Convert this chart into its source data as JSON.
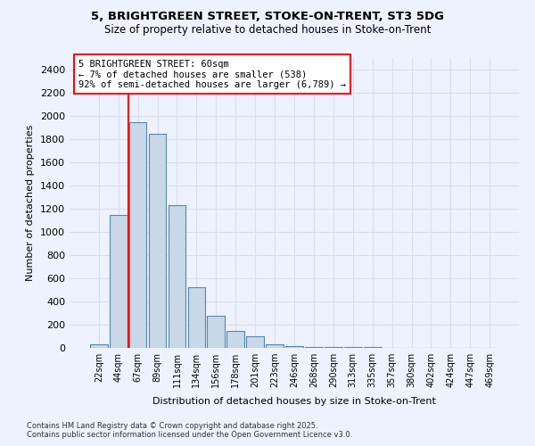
{
  "title_line1": "5, BRIGHTGREEN STREET, STOKE-ON-TRENT, ST3 5DG",
  "title_line2": "Size of property relative to detached houses in Stoke-on-Trent",
  "xlabel": "Distribution of detached houses by size in Stoke-on-Trent",
  "ylabel": "Number of detached properties",
  "categories": [
    "22sqm",
    "44sqm",
    "67sqm",
    "89sqm",
    "111sqm",
    "134sqm",
    "156sqm",
    "178sqm",
    "201sqm",
    "223sqm",
    "246sqm",
    "268sqm",
    "290sqm",
    "313sqm",
    "335sqm",
    "357sqm",
    "380sqm",
    "402sqm",
    "424sqm",
    "447sqm",
    "469sqm"
  ],
  "values": [
    30,
    1150,
    1950,
    1850,
    1230,
    520,
    280,
    150,
    100,
    30,
    15,
    8,
    5,
    5,
    5,
    3,
    3,
    3,
    3,
    3,
    3
  ],
  "bar_color": "#c8d8e8",
  "bar_edge_color": "#5588aa",
  "red_line_x": 1.5,
  "annotation_text": "5 BRIGHTGREEN STREET: 60sqm\n← 7% of detached houses are smaller (538)\n92% of semi-detached houses are larger (6,789) →",
  "annotation_box_color": "white",
  "annotation_box_edge_color": "red",
  "ylim": [
    0,
    2500
  ],
  "yticks": [
    0,
    200,
    400,
    600,
    800,
    1000,
    1200,
    1400,
    1600,
    1800,
    2000,
    2200,
    2400
  ],
  "bg_color": "#eef2ff",
  "grid_color": "#d8dff0",
  "footer_line1": "Contains HM Land Registry data © Crown copyright and database right 2025.",
  "footer_line2": "Contains public sector information licensed under the Open Government Licence v3.0."
}
